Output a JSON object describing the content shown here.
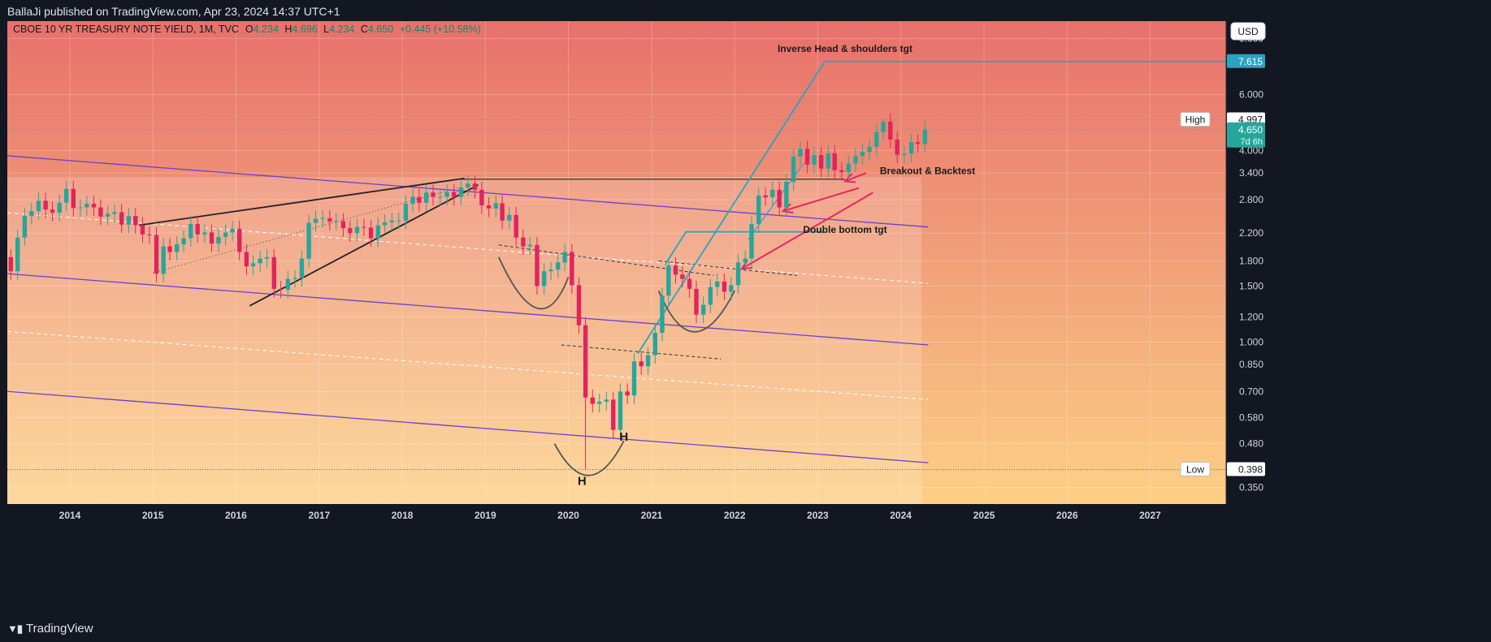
{
  "header": {
    "published": "BallaJi published on TradingView.com, Apr 23, 2024 14:37 UTC+1",
    "symbol": "CBOE 10 YR TREASURY NOTE YIELD, 1M, TVC",
    "ohlc": {
      "o_label": "O",
      "o": "4.234",
      "h_label": "H",
      "h": "4.696",
      "l_label": "L",
      "l": "4.234",
      "c_label": "C",
      "c": "4.650",
      "change": "+0.445 (+10.58%)"
    }
  },
  "footer": {
    "brand": "TradingView"
  },
  "currency": "USD",
  "colors": {
    "up": "#26a69a",
    "down": "#e0245e",
    "channel": "#6a3fd1",
    "target": "#2aa3c2",
    "arrow": "#ea2560",
    "bg": "#131722"
  },
  "chart_data": {
    "type": "candlestick",
    "title": "CBOE 10 YR TREASURY NOTE YIELD, 1M, TVC",
    "y_scale": "log",
    "ylim": [
      0.31,
      10.2
    ],
    "x_range": [
      "2013-04-01",
      "2027-12-01"
    ],
    "x_ticks": [
      "2014",
      "2015",
      "2016",
      "2017",
      "2018",
      "2019",
      "2020",
      "2021",
      "2022",
      "2023",
      "2024",
      "2025",
      "2026",
      "2027"
    ],
    "y_ticks": [
      "9.000",
      "7.615",
      "6.000",
      "4.997",
      "4.650",
      "4.000",
      "3.400",
      "2.800",
      "2.200",
      "1.800",
      "1.500",
      "1.200",
      "1.000",
      "0.850",
      "0.700",
      "0.580",
      "0.480",
      "0.398",
      "0.350"
    ],
    "price_labels": {
      "target": {
        "value": 7.615,
        "text": "7.615"
      },
      "high": {
        "label": "High",
        "value": 4.997,
        "text": "4.997"
      },
      "current": {
        "value": 4.65,
        "text": "4.650",
        "countdown": "7d 6h"
      },
      "low": {
        "label": "Low",
        "value": 0.398,
        "text": "0.398"
      }
    },
    "annotations": [
      {
        "text": "Inverse Head & shoulders tgt"
      },
      {
        "text": "Breakout & Backtest"
      },
      {
        "text": "Double bottom tgt"
      },
      {
        "text": "H"
      },
      {
        "text": "H"
      }
    ],
    "candles": [
      {
        "d": "2013-04",
        "c": 1.67
      },
      {
        "d": "2013-05",
        "c": 2.13
      },
      {
        "d": "2013-06",
        "c": 2.49
      },
      {
        "d": "2013-07",
        "c": 2.58
      },
      {
        "d": "2013-08",
        "c": 2.78
      },
      {
        "d": "2013-09",
        "c": 2.61
      },
      {
        "d": "2013-10",
        "c": 2.55
      },
      {
        "d": "2013-11",
        "c": 2.74
      },
      {
        "d": "2013-12",
        "c": 3.03
      },
      {
        "d": "2014-01",
        "c": 2.64
      },
      {
        "d": "2014-02",
        "c": 2.65
      },
      {
        "d": "2014-03",
        "c": 2.72
      },
      {
        "d": "2014-04",
        "c": 2.65
      },
      {
        "d": "2014-05",
        "c": 2.48
      },
      {
        "d": "2014-06",
        "c": 2.53
      },
      {
        "d": "2014-07",
        "c": 2.56
      },
      {
        "d": "2014-08",
        "c": 2.34
      },
      {
        "d": "2014-09",
        "c": 2.49
      },
      {
        "d": "2014-10",
        "c": 2.33
      },
      {
        "d": "2014-11",
        "c": 2.18
      },
      {
        "d": "2014-12",
        "c": 2.17
      },
      {
        "d": "2015-01",
        "c": 1.64
      },
      {
        "d": "2015-02",
        "c": 2.0
      },
      {
        "d": "2015-03",
        "c": 1.92
      },
      {
        "d": "2015-04",
        "c": 2.03
      },
      {
        "d": "2015-05",
        "c": 2.12
      },
      {
        "d": "2015-06",
        "c": 2.35
      },
      {
        "d": "2015-07",
        "c": 2.18
      },
      {
        "d": "2015-08",
        "c": 2.21
      },
      {
        "d": "2015-09",
        "c": 2.04
      },
      {
        "d": "2015-10",
        "c": 2.14
      },
      {
        "d": "2015-11",
        "c": 2.21
      },
      {
        "d": "2015-12",
        "c": 2.27
      },
      {
        "d": "2016-01",
        "c": 1.92
      },
      {
        "d": "2016-02",
        "c": 1.73
      },
      {
        "d": "2016-03",
        "c": 1.77
      },
      {
        "d": "2016-04",
        "c": 1.83
      },
      {
        "d": "2016-05",
        "c": 1.85
      },
      {
        "d": "2016-06",
        "c": 1.47
      },
      {
        "d": "2016-07",
        "c": 1.46
      },
      {
        "d": "2016-08",
        "c": 1.58
      },
      {
        "d": "2016-09",
        "c": 1.59
      },
      {
        "d": "2016-10",
        "c": 1.83
      },
      {
        "d": "2016-11",
        "c": 2.37
      },
      {
        "d": "2016-12",
        "c": 2.44
      },
      {
        "d": "2017-01",
        "c": 2.45
      },
      {
        "d": "2017-02",
        "c": 2.39
      },
      {
        "d": "2017-03",
        "c": 2.4
      },
      {
        "d": "2017-04",
        "c": 2.28
      },
      {
        "d": "2017-05",
        "c": 2.2
      },
      {
        "d": "2017-06",
        "c": 2.3
      },
      {
        "d": "2017-07",
        "c": 2.29
      },
      {
        "d": "2017-08",
        "c": 2.12
      },
      {
        "d": "2017-09",
        "c": 2.33
      },
      {
        "d": "2017-10",
        "c": 2.38
      },
      {
        "d": "2017-11",
        "c": 2.41
      },
      {
        "d": "2017-12",
        "c": 2.41
      },
      {
        "d": "2018-01",
        "c": 2.72
      },
      {
        "d": "2018-02",
        "c": 2.86
      },
      {
        "d": "2018-03",
        "c": 2.74
      },
      {
        "d": "2018-04",
        "c": 2.95
      },
      {
        "d": "2018-05",
        "c": 2.86
      },
      {
        "d": "2018-06",
        "c": 2.86
      },
      {
        "d": "2018-07",
        "c": 2.96
      },
      {
        "d": "2018-08",
        "c": 2.86
      },
      {
        "d": "2018-09",
        "c": 3.06
      },
      {
        "d": "2018-10",
        "c": 3.15
      },
      {
        "d": "2018-11",
        "c": 3.01
      },
      {
        "d": "2018-12",
        "c": 2.69
      },
      {
        "d": "2019-01",
        "c": 2.63
      },
      {
        "d": "2019-02",
        "c": 2.73
      },
      {
        "d": "2019-03",
        "c": 2.41
      },
      {
        "d": "2019-04",
        "c": 2.51
      },
      {
        "d": "2019-05",
        "c": 2.13
      },
      {
        "d": "2019-06",
        "c": 2.0
      },
      {
        "d": "2019-07",
        "c": 2.02
      },
      {
        "d": "2019-08",
        "c": 1.5
      },
      {
        "d": "2019-09",
        "c": 1.67
      },
      {
        "d": "2019-10",
        "c": 1.69
      },
      {
        "d": "2019-11",
        "c": 1.78
      },
      {
        "d": "2019-12",
        "c": 1.92
      },
      {
        "d": "2020-01",
        "c": 1.51
      },
      {
        "d": "2020-02",
        "c": 1.13
      },
      {
        "d": "2020-03",
        "c": 0.67
      },
      {
        "d": "2020-04",
        "c": 0.64
      },
      {
        "d": "2020-05",
        "c": 0.65
      },
      {
        "d": "2020-06",
        "c": 0.66
      },
      {
        "d": "2020-07",
        "c": 0.53
      },
      {
        "d": "2020-08",
        "c": 0.7
      },
      {
        "d": "2020-09",
        "c": 0.68
      },
      {
        "d": "2020-10",
        "c": 0.87
      },
      {
        "d": "2020-11",
        "c": 0.84
      },
      {
        "d": "2020-12",
        "c": 0.91
      },
      {
        "d": "2021-01",
        "c": 1.07
      },
      {
        "d": "2021-02",
        "c": 1.4
      },
      {
        "d": "2021-03",
        "c": 1.74
      },
      {
        "d": "2021-04",
        "c": 1.63
      },
      {
        "d": "2021-05",
        "c": 1.58
      },
      {
        "d": "2021-06",
        "c": 1.47
      },
      {
        "d": "2021-07",
        "c": 1.22
      },
      {
        "d": "2021-08",
        "c": 1.31
      },
      {
        "d": "2021-09",
        "c": 1.49
      },
      {
        "d": "2021-10",
        "c": 1.55
      },
      {
        "d": "2021-11",
        "c": 1.44
      },
      {
        "d": "2021-12",
        "c": 1.51
      },
      {
        "d": "2022-01",
        "c": 1.78
      },
      {
        "d": "2022-02",
        "c": 1.83
      },
      {
        "d": "2022-03",
        "c": 2.35
      },
      {
        "d": "2022-04",
        "c": 2.89
      },
      {
        "d": "2022-05",
        "c": 2.85
      },
      {
        "d": "2022-06",
        "c": 3.01
      },
      {
        "d": "2022-07",
        "c": 2.65
      },
      {
        "d": "2022-08",
        "c": 3.19
      },
      {
        "d": "2022-09",
        "c": 3.83
      },
      {
        "d": "2022-10",
        "c": 4.05
      },
      {
        "d": "2022-11",
        "c": 3.61
      },
      {
        "d": "2022-12",
        "c": 3.87
      },
      {
        "d": "2023-01",
        "c": 3.51
      },
      {
        "d": "2023-02",
        "c": 3.92
      },
      {
        "d": "2023-03",
        "c": 3.47
      },
      {
        "d": "2023-04",
        "c": 3.42
      },
      {
        "d": "2023-05",
        "c": 3.64
      },
      {
        "d": "2023-06",
        "c": 3.84
      },
      {
        "d": "2023-07",
        "c": 3.96
      },
      {
        "d": "2023-08",
        "c": 4.11
      },
      {
        "d": "2023-09",
        "c": 4.57
      },
      {
        "d": "2023-10",
        "c": 4.93
      },
      {
        "d": "2023-11",
        "c": 4.33
      },
      {
        "d": "2023-12",
        "c": 3.88
      },
      {
        "d": "2024-01",
        "c": 3.91
      },
      {
        "d": "2024-02",
        "c": 4.25
      },
      {
        "d": "2024-03",
        "c": 4.2
      },
      {
        "d": "2024-04",
        "c": 4.65
      }
    ],
    "candle_open_first": 1.85
  }
}
